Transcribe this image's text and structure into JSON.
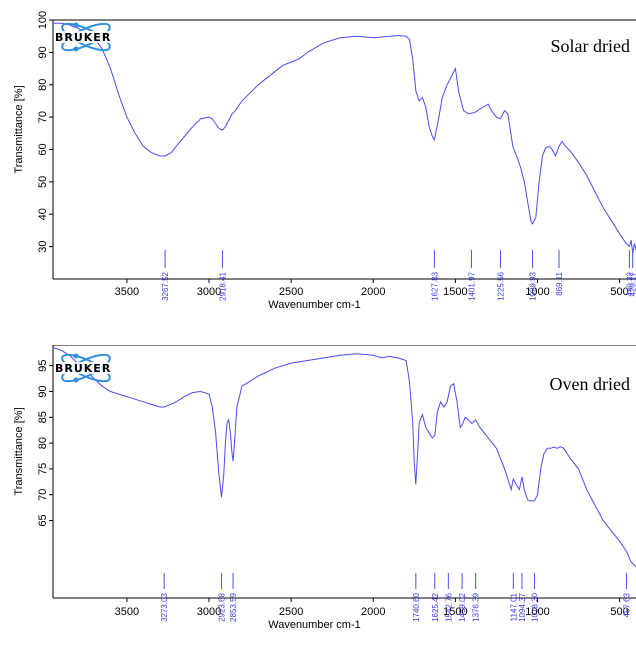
{
  "chart_data": [
    {
      "type": "line",
      "logo": "BRUKER",
      "title": "Solar dried",
      "xlabel": "Wavenumber cm-1",
      "ylabel": "Transmittance [%]",
      "xlim": [
        3950,
        400
      ],
      "ylim": [
        20,
        100
      ],
      "x_ticks": [
        "3500",
        "3000",
        "2500",
        "2000",
        "1500",
        "1000",
        "500"
      ],
      "y_ticks": [
        "30",
        "40",
        "50",
        "60",
        "70",
        "80",
        "90",
        "100"
      ],
      "line_color": "#4b4bf5",
      "peak_labels": [
        "3267.52",
        "2918.41",
        "1627.83",
        "1401.97",
        "1225.56",
        "1029.93",
        "869.11",
        "440.32",
        "420.17"
      ],
      "series": [
        {
          "x": [
            3950,
            3900,
            3850,
            3800,
            3750,
            3700,
            3650,
            3600,
            3550,
            3500,
            3450,
            3400,
            3350,
            3300,
            3267.52,
            3230,
            3200,
            3150,
            3100,
            3050,
            3000,
            2980,
            2960,
            2940,
            2918.41,
            2900,
            2880,
            2860,
            2840,
            2800,
            2700,
            2600,
            2550,
            2500,
            2450,
            2400,
            2300,
            2200,
            2100,
            2000,
            1900,
            1850,
            1800,
            1780,
            1760,
            1740,
            1720,
            1700,
            1680,
            1660,
            1640,
            1627.83,
            1600,
            1580,
            1550,
            1520,
            1500,
            1480,
            1450,
            1420,
            1401.97,
            1380,
            1350,
            1300,
            1280,
            1250,
            1225.56,
            1200,
            1180,
            1150,
            1120,
            1100,
            1080,
            1060,
            1040,
            1029.93,
            1010,
            990,
            970,
            950,
            930,
            910,
            890,
            869.11,
            850,
            830,
            800,
            750,
            700,
            650,
            600,
            550,
            500,
            460,
            440.32,
            430,
            420.17,
            410,
            400
          ],
          "y": [
            99,
            99,
            98.5,
            97.5,
            96,
            94.5,
            91,
            85,
            77,
            70,
            65,
            61,
            59,
            58,
            58,
            59,
            61,
            64,
            67,
            69.5,
            70,
            69.5,
            68,
            66.5,
            66,
            67,
            69,
            71,
            72,
            75,
            80,
            84,
            86,
            87,
            88,
            90,
            93,
            94.5,
            95,
            94.5,
            95,
            95.2,
            95,
            94,
            88,
            78,
            75,
            76,
            73,
            67,
            64,
            63,
            70,
            76,
            80,
            83,
            85,
            78,
            72,
            71,
            71.2,
            71.5,
            72.5,
            74,
            72,
            70,
            69.5,
            72,
            71,
            61,
            57,
            54,
            50,
            44,
            38,
            37,
            39,
            50,
            58,
            60.5,
            61,
            60,
            58,
            61,
            62.5,
            61,
            59.5,
            56,
            52,
            47,
            42,
            38,
            34,
            31,
            30,
            32,
            28,
            31,
            29
          ]
        }
      ]
    },
    {
      "type": "line",
      "logo": "BRUKER",
      "title": "Oven dried",
      "xlabel": "Wavenumber cm-1",
      "ylabel": "Transmittance [%]",
      "xlim": [
        3950,
        400
      ],
      "ylim": [
        50,
        99
      ],
      "x_ticks": [
        "3500",
        "3000",
        "2500",
        "2000",
        "1500",
        "1000",
        "500"
      ],
      "y_ticks": [
        "65",
        "70",
        "75",
        "80",
        "85",
        "90",
        "95"
      ],
      "line_color": "#4b4bf5",
      "peak_labels": [
        "3273.03",
        "2923.68",
        "2853.59",
        "1740.60",
        "1625.42",
        "1542.76",
        "1459.02",
        "1376.39",
        "1147.01",
        "1094.37",
        "1018.30",
        "457.63"
      ],
      "series": [
        {
          "x": [
            3950,
            3900,
            3850,
            3800,
            3750,
            3700,
            3650,
            3600,
            3550,
            3500,
            3450,
            3400,
            3350,
            3300,
            3273.03,
            3250,
            3200,
            3150,
            3100,
            3050,
            3000,
            2980,
            2960,
            2940,
            2923.68,
            2910,
            2900,
            2890,
            2880,
            2870,
            2860,
            2853.59,
            2845,
            2830,
            2800,
            2700,
            2600,
            2500,
            2400,
            2300,
            2200,
            2100,
            2000,
            1950,
            1900,
            1850,
            1800,
            1780,
            1760,
            1750,
            1740.6,
            1730,
            1720,
            1700,
            1680,
            1660,
            1640,
            1625.42,
            1610,
            1590,
            1570,
            1550,
            1542.76,
            1530,
            1510,
            1490,
            1470,
            1459.02,
            1440,
            1420,
            1400,
            1376.39,
            1350,
            1300,
            1250,
            1200,
            1160,
            1147.01,
            1130,
            1110,
            1094.37,
            1080,
            1060,
            1040,
            1018.3,
            1000,
            980,
            960,
            940,
            920,
            900,
            880,
            860,
            840,
            820,
            800,
            750,
            700,
            650,
            600,
            550,
            500,
            457.63,
            430,
            400
          ],
          "y": [
            98.5,
            98,
            97,
            95.5,
            94,
            92.5,
            91,
            90,
            89.5,
            89,
            88.5,
            88,
            87.5,
            87,
            87,
            87.3,
            88,
            89,
            89.8,
            90,
            89.5,
            87,
            82,
            74,
            69.5,
            74,
            80,
            84,
            84.5,
            82,
            78,
            76.5,
            80,
            87,
            91,
            93,
            94.5,
            95.5,
            96,
            96.5,
            97,
            97.3,
            97,
            96.5,
            96.8,
            96.5,
            96,
            92,
            84,
            76,
            72,
            78,
            84,
            85.5,
            83,
            82,
            81,
            81.5,
            86,
            88,
            87,
            88,
            89,
            91,
            91.5,
            88,
            83,
            83.5,
            85,
            84.5,
            83.8,
            84.5,
            83,
            81,
            79,
            75,
            71,
            73,
            72,
            71,
            73.5,
            71,
            69,
            68.8,
            68.8,
            70,
            75,
            78,
            79,
            79,
            79.2,
            79,
            79.3,
            79,
            78,
            77,
            75,
            71,
            68,
            65,
            63,
            61,
            59,
            57,
            56
          ]
        }
      ]
    }
  ]
}
